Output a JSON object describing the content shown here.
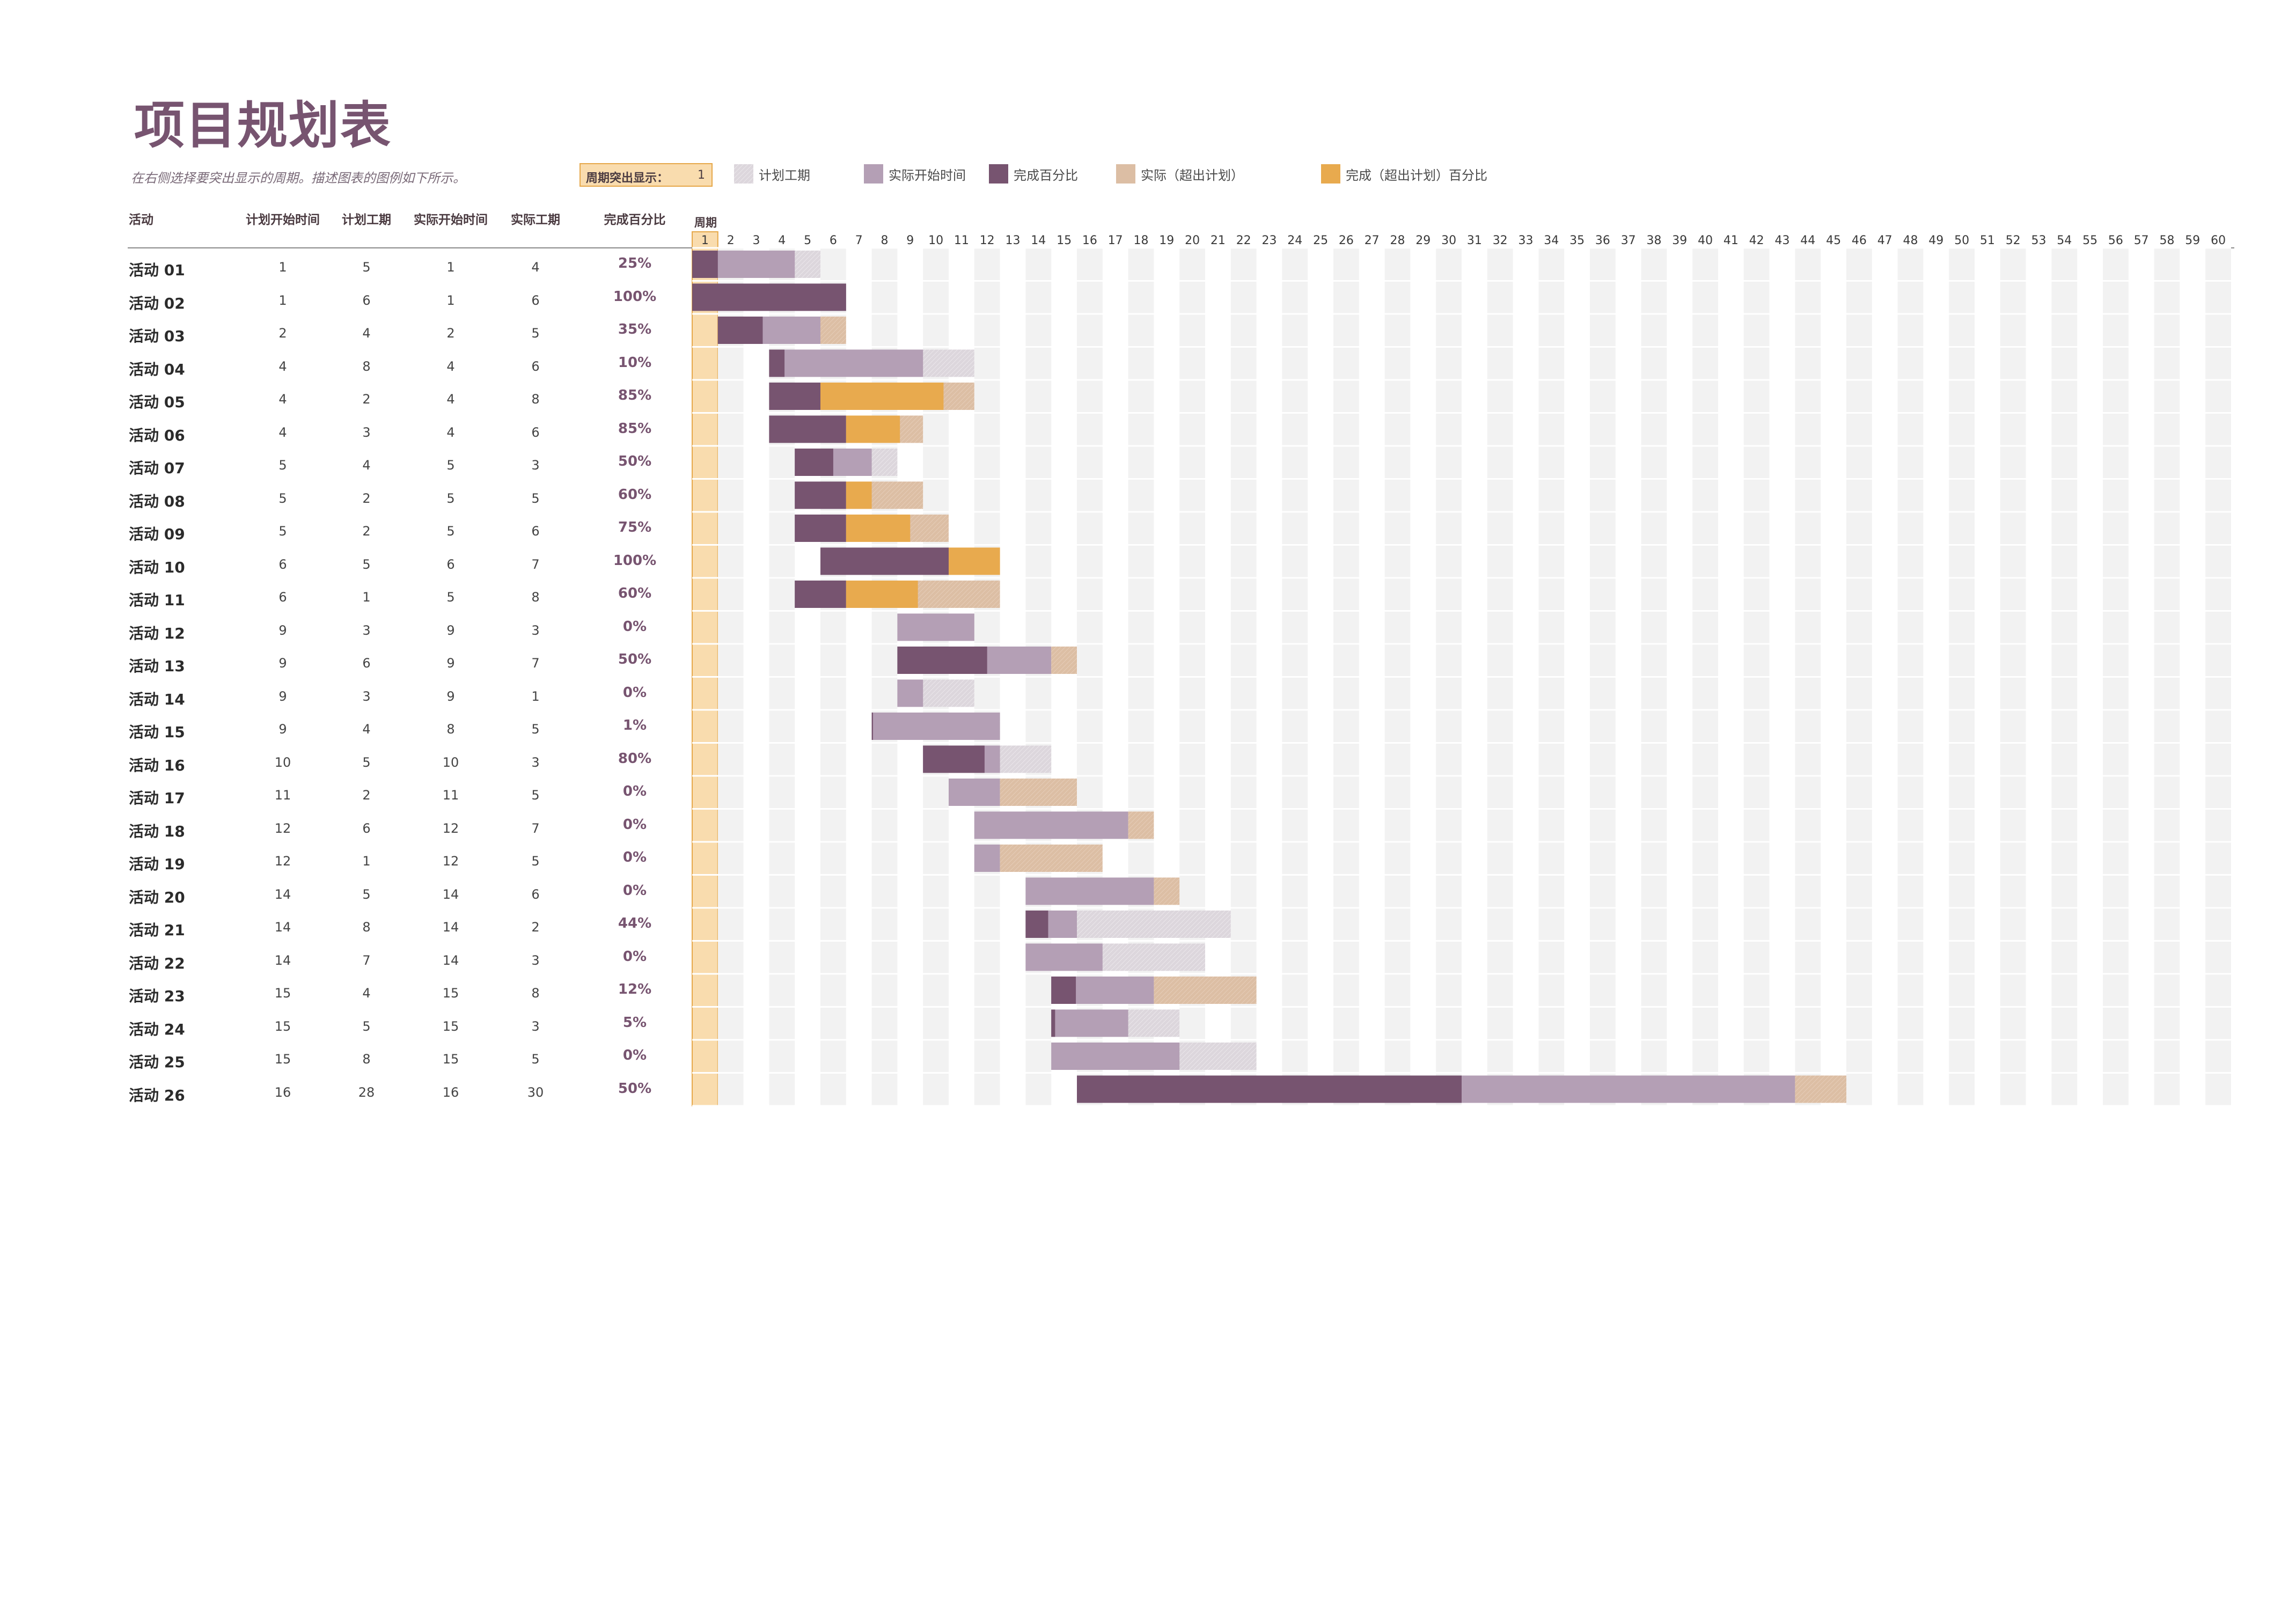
{
  "title": "项目规划表",
  "subtitle": "在右侧选择要突出显示的周期。描述图表的图例如下所示。",
  "period_highlight": {
    "label": "周期突出显示：",
    "value": "1"
  },
  "legend": [
    {
      "label": "计划工期",
      "color": "#dcd6dc",
      "hatched": true
    },
    {
      "label": "实际开始时间",
      "color": "#b49fb5"
    },
    {
      "label": "完成百分比",
      "color": "#775470"
    },
    {
      "label": "实际（超出计划）",
      "color": "#dcbea4"
    },
    {
      "label": "完成（超出计划）百分比",
      "color": "#e8aa4e"
    }
  ],
  "columns": {
    "activity": "活动",
    "plan_start": "计划开始时间",
    "plan_duration": "计划工期",
    "actual_start": "实际开始时间",
    "actual_duration": "实际工期",
    "percent": "完成百分比",
    "period": "周期"
  },
  "colors": {
    "title": "#775470",
    "plan": "#dcd6dc",
    "actual": "#b49fb5",
    "complete": "#775470",
    "actual_beyond": "#dcbea4",
    "complete_beyond": "#e8aa4e",
    "highlight": "#f9dcae",
    "stripe": "#f2f2f2"
  },
  "chart_data": {
    "type": "gantt",
    "periods": [
      1,
      2,
      3,
      4,
      5,
      6,
      7,
      8,
      9,
      10,
      11,
      12,
      13,
      14,
      15,
      16,
      17,
      18,
      19,
      20,
      21,
      22,
      23,
      24,
      25,
      26,
      27,
      28,
      29,
      30,
      31,
      32,
      33,
      34,
      35,
      36,
      37,
      38,
      39,
      40,
      41,
      42,
      43,
      44,
      45,
      46,
      47,
      48,
      49,
      50,
      51,
      52,
      53,
      54,
      55,
      56,
      57,
      58,
      59,
      60
    ],
    "highlighted_period": 1,
    "activities": [
      {
        "name": "活动 01",
        "plan_start": 1,
        "plan_duration": 5,
        "actual_start": 1,
        "actual_duration": 4,
        "percent": "25%"
      },
      {
        "name": "活动 02",
        "plan_start": 1,
        "plan_duration": 6,
        "actual_start": 1,
        "actual_duration": 6,
        "percent": "100%"
      },
      {
        "name": "活动 03",
        "plan_start": 2,
        "plan_duration": 4,
        "actual_start": 2,
        "actual_duration": 5,
        "percent": "35%"
      },
      {
        "name": "活动 04",
        "plan_start": 4,
        "plan_duration": 8,
        "actual_start": 4,
        "actual_duration": 6,
        "percent": "10%"
      },
      {
        "name": "活动 05",
        "plan_start": 4,
        "plan_duration": 2,
        "actual_start": 4,
        "actual_duration": 8,
        "percent": "85%"
      },
      {
        "name": "活动 06",
        "plan_start": 4,
        "plan_duration": 3,
        "actual_start": 4,
        "actual_duration": 6,
        "percent": "85%"
      },
      {
        "name": "活动 07",
        "plan_start": 5,
        "plan_duration": 4,
        "actual_start": 5,
        "actual_duration": 3,
        "percent": "50%"
      },
      {
        "name": "活动 08",
        "plan_start": 5,
        "plan_duration": 2,
        "actual_start": 5,
        "actual_duration": 5,
        "percent": "60%"
      },
      {
        "name": "活动 09",
        "plan_start": 5,
        "plan_duration": 2,
        "actual_start": 5,
        "actual_duration": 6,
        "percent": "75%"
      },
      {
        "name": "活动 10",
        "plan_start": 6,
        "plan_duration": 5,
        "actual_start": 6,
        "actual_duration": 7,
        "percent": "100%"
      },
      {
        "name": "活动 11",
        "plan_start": 6,
        "plan_duration": 1,
        "actual_start": 5,
        "actual_duration": 8,
        "percent": "60%"
      },
      {
        "name": "活动 12",
        "plan_start": 9,
        "plan_duration": 3,
        "actual_start": 9,
        "actual_duration": 3,
        "percent": "0%"
      },
      {
        "name": "活动 13",
        "plan_start": 9,
        "plan_duration": 6,
        "actual_start": 9,
        "actual_duration": 7,
        "percent": "50%"
      },
      {
        "name": "活动 14",
        "plan_start": 9,
        "plan_duration": 3,
        "actual_start": 9,
        "actual_duration": 1,
        "percent": "0%"
      },
      {
        "name": "活动 15",
        "plan_start": 9,
        "plan_duration": 4,
        "actual_start": 8,
        "actual_duration": 5,
        "percent": "1%"
      },
      {
        "name": "活动 16",
        "plan_start": 10,
        "plan_duration": 5,
        "actual_start": 10,
        "actual_duration": 3,
        "percent": "80%"
      },
      {
        "name": "活动 17",
        "plan_start": 11,
        "plan_duration": 2,
        "actual_start": 11,
        "actual_duration": 5,
        "percent": "0%"
      },
      {
        "name": "活动 18",
        "plan_start": 12,
        "plan_duration": 6,
        "actual_start": 12,
        "actual_duration": 7,
        "percent": "0%"
      },
      {
        "name": "活动 19",
        "plan_start": 12,
        "plan_duration": 1,
        "actual_start": 12,
        "actual_duration": 5,
        "percent": "0%"
      },
      {
        "name": "活动 20",
        "plan_start": 14,
        "plan_duration": 5,
        "actual_start": 14,
        "actual_duration": 6,
        "percent": "0%"
      },
      {
        "name": "活动 21",
        "plan_start": 14,
        "plan_duration": 8,
        "actual_start": 14,
        "actual_duration": 2,
        "percent": "44%"
      },
      {
        "name": "活动 22",
        "plan_start": 14,
        "plan_duration": 7,
        "actual_start": 14,
        "actual_duration": 3,
        "percent": "0%"
      },
      {
        "name": "活动 23",
        "plan_start": 15,
        "plan_duration": 4,
        "actual_start": 15,
        "actual_duration": 8,
        "percent": "12%"
      },
      {
        "name": "活动 24",
        "plan_start": 15,
        "plan_duration": 5,
        "actual_start": 15,
        "actual_duration": 3,
        "percent": "5%"
      },
      {
        "name": "活动 25",
        "plan_start": 15,
        "plan_duration": 8,
        "actual_start": 15,
        "actual_duration": 5,
        "percent": "0%"
      },
      {
        "name": "活动 26",
        "plan_start": 16,
        "plan_duration": 28,
        "actual_start": 16,
        "actual_duration": 30,
        "percent": "50%"
      }
    ]
  }
}
